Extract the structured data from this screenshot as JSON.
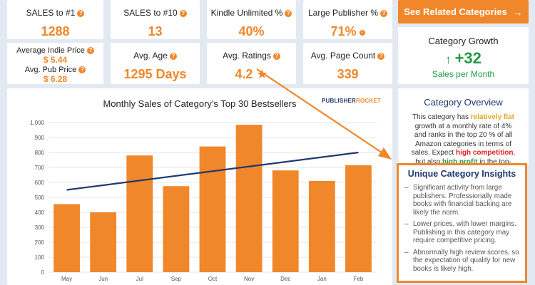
{
  "stats": {
    "sales_to_1": {
      "label": "SALES to #1",
      "value": "1288"
    },
    "sales_to_10": {
      "label": "SALES to #10",
      "value": "13"
    },
    "kindle_unlimited": {
      "label": "Kindle Unlimited %",
      "value": "40%"
    },
    "large_publisher": {
      "label": "Large Publisher %",
      "value": "71%"
    },
    "avg_indie_price": {
      "label": "Average Indie Price",
      "value": "$ 5.44"
    },
    "avg_pub_price": {
      "label": "Avg. Pub Price",
      "value": "$ 6.28"
    },
    "avg_age": {
      "label": "Avg. Age",
      "value": "1295 Days"
    },
    "avg_ratings": {
      "label": "Avg. Ratings",
      "value": "4.2 ★"
    },
    "avg_page_count": {
      "label": "Avg. Page Count",
      "value": "339"
    }
  },
  "help_glyph": "?",
  "info_glyph": "i",
  "see_related": {
    "label": "See Related Categories",
    "arrow": "→"
  },
  "growth": {
    "title": "Category Growth",
    "arrow": "↑",
    "value": "+32",
    "subtitle": "Sales per Month"
  },
  "overview": {
    "title": "Category Overview",
    "t1": "This category has ",
    "h1": "relatively flat",
    "t2": " growth at a monthly rate of 4% and ranks in the top 20 % of all Amazon categories in terms of sales. Expect ",
    "h2": "high competition",
    "t3": ", but also ",
    "h3": "high profit",
    "t4": " in the top-ranking books."
  },
  "insights": {
    "title": "Unique Category Insights",
    "items": [
      "Significant activity from large publishers. Professionally made books with financial backing are likely the norm.",
      "Lower prices, with lower margins. Publishing in this category may require competitive pricing.",
      "Abnormally high review scores, so the expectation of quality for new books is likely high."
    ]
  },
  "logo": {
    "part1": "PUBLISHER",
    "part2": "ROCKET"
  },
  "colors": {
    "accent": "#f0872a",
    "navy": "#1e3a6e",
    "green": "#229a43",
    "background": "#e3e9f2"
  },
  "chart_data": {
    "type": "bar",
    "title": "Monthly Sales of Category's Top 30 Bestsellers",
    "categories": [
      "May",
      "Jun",
      "Jul",
      "Sep",
      "Oct",
      "Nov",
      "Dec",
      "Jan",
      "Feb"
    ],
    "values": [
      455,
      400,
      780,
      575,
      840,
      985,
      680,
      610,
      715
    ],
    "trend": {
      "start": 550,
      "end": 800
    },
    "yticks": [
      "0",
      "100",
      "200",
      "300",
      "400",
      "500",
      "600",
      "700",
      "800",
      "900",
      "1,000"
    ],
    "ylim": [
      0,
      1000
    ],
    "grid": true,
    "bar_color": "#f0872a",
    "trend_color": "#1e3a6e"
  }
}
